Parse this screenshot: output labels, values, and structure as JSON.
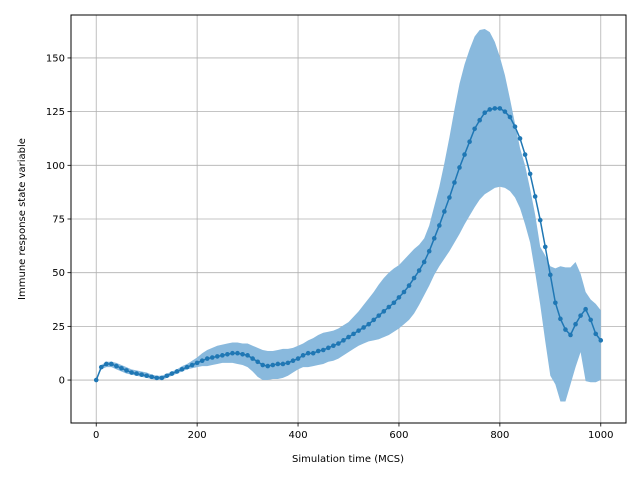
{
  "chart_data": {
    "type": "line",
    "xlabel": "Simulation time (MCS)",
    "ylabel": "Immune response state variable",
    "xlim": [
      -50,
      1050
    ],
    "ylim": [
      -20,
      170
    ],
    "xticks": [
      0,
      200,
      400,
      600,
      800,
      1000
    ],
    "yticks": [
      0,
      25,
      50,
      75,
      100,
      125,
      150
    ],
    "grid": true,
    "colors": {
      "line": "#1f77b4",
      "band": "#89b9dd"
    },
    "series": [
      {
        "x": [
          0,
          10,
          20,
          30,
          40,
          50,
          60,
          70,
          80,
          90,
          100,
          110,
          120,
          130,
          140,
          150,
          160,
          170,
          180,
          190,
          200,
          210,
          220,
          230,
          240,
          250,
          260,
          270,
          280,
          290,
          300,
          310,
          320,
          330,
          340,
          350,
          360,
          370,
          380,
          390,
          400,
          410,
          420,
          430,
          440,
          450,
          460,
          470,
          480,
          490,
          500,
          510,
          520,
          530,
          540,
          550,
          560,
          570,
          580,
          590,
          600,
          610,
          620,
          630,
          640,
          650,
          660,
          670,
          680,
          690,
          700,
          710,
          720,
          730,
          740,
          750,
          760,
          770,
          780,
          790,
          800,
          810,
          820,
          830,
          840,
          850,
          860,
          870,
          880,
          890,
          900,
          910,
          920,
          930,
          940,
          950,
          960,
          970,
          980,
          990,
          1000
        ],
        "y": [
          0,
          6,
          7.5,
          7.5,
          6.5,
          5.5,
          4.5,
          3.5,
          3,
          2.5,
          2,
          1.5,
          1,
          1,
          2,
          3,
          4,
          5,
          6,
          7,
          8,
          9,
          10,
          10.5,
          11,
          11.5,
          12,
          12.5,
          12.5,
          12,
          11.5,
          10,
          8.5,
          7,
          6.5,
          7,
          7.5,
          7.5,
          8,
          9,
          10,
          11.5,
          12.5,
          12.5,
          13.5,
          14,
          15,
          16,
          17,
          18.5,
          20,
          21.5,
          23,
          24.5,
          26,
          28,
          30,
          32,
          34,
          36,
          38.5,
          41,
          44,
          47.5,
          51,
          55,
          60,
          66,
          72,
          78.5,
          85,
          92,
          99,
          105,
          111,
          117,
          121,
          124.5,
          126,
          126.5,
          126.5,
          125,
          122.5,
          118,
          112.5,
          105,
          96,
          85.5,
          74.5,
          62,
          49,
          36,
          28.5,
          23.5,
          21,
          26,
          30,
          33,
          28,
          21.5,
          18.5
        ],
        "lower": [
          0,
          5,
          6,
          6,
          5,
          4,
          3,
          2.5,
          2,
          1.5,
          1,
          0.5,
          0,
          0,
          1,
          2,
          3,
          4,
          5,
          5.5,
          6,
          6.5,
          6.5,
          7,
          7.5,
          8,
          8,
          8,
          7.5,
          7,
          6,
          4,
          1.5,
          0,
          0,
          0.5,
          0.5,
          1,
          2,
          3.5,
          5,
          6,
          6,
          6.5,
          7,
          7.5,
          8.5,
          9,
          10,
          11.5,
          13,
          14.5,
          16,
          17,
          18,
          18.5,
          19,
          20,
          21,
          22.5,
          24,
          26,
          28,
          31,
          35,
          39.5,
          44,
          49,
          53,
          56.5,
          60,
          64,
          68,
          72.5,
          76.5,
          80.5,
          84,
          86.5,
          88,
          89.5,
          90,
          89.5,
          88,
          85,
          80,
          72.5,
          64,
          50,
          35,
          18,
          2,
          -2,
          -10,
          -10,
          -2,
          6,
          13,
          -0.5,
          -1,
          -1,
          0
        ],
        "upper": [
          0,
          7,
          8.5,
          8.5,
          8,
          7,
          6,
          5,
          4.5,
          4,
          3.5,
          2.5,
          2,
          2,
          3,
          4,
          5,
          6.5,
          7.5,
          9,
          10.5,
          12.5,
          14,
          15,
          16,
          16.5,
          17,
          17.5,
          17.5,
          17,
          17,
          16,
          15,
          14,
          13.5,
          13.5,
          14,
          14.5,
          14.5,
          15,
          16,
          17,
          18.5,
          19.5,
          21,
          22,
          22.5,
          23,
          24,
          25.5,
          27,
          29.5,
          32,
          35,
          38,
          41,
          44.5,
          47.5,
          50,
          52,
          53.5,
          56,
          58.5,
          61,
          63,
          66,
          72,
          81,
          90,
          101,
          113,
          126,
          138,
          147,
          154,
          160,
          163,
          163.5,
          162,
          157.5,
          150.5,
          142,
          131,
          119.5,
          108,
          100,
          89,
          77,
          62,
          58,
          53,
          52,
          53,
          52.5,
          52.5,
          55,
          49.5,
          41,
          37.5,
          35.5,
          32.5
        ]
      }
    ]
  }
}
